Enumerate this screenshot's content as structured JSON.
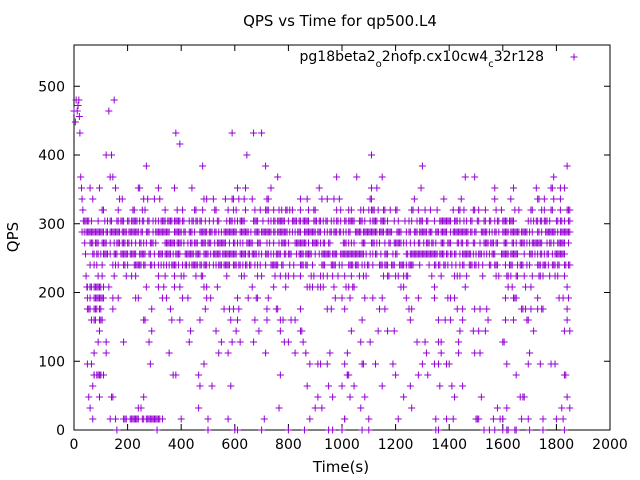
{
  "chart_data": {
    "type": "scatter",
    "title": "QPS vs Time for qp500.L4",
    "xlabel": "Time(s)",
    "ylabel": "QPS",
    "xlim": [
      0,
      2000
    ],
    "ylim": [
      0,
      560
    ],
    "xticks": [
      0,
      200,
      400,
      600,
      800,
      1000,
      1200,
      1400,
      1600,
      1800,
      2000
    ],
    "yticks": [
      0,
      100,
      200,
      300,
      400,
      500
    ],
    "grid": false,
    "legend_position": "top-right",
    "series": [
      {
        "name": "pg18beta2_o2nofp.cx10cw4_c32r128",
        "name_parts": [
          {
            "text": "pg18beta2",
            "sub": false
          },
          {
            "text": "o",
            "sub": true
          },
          {
            "text": "2nofp.cx10cw4",
            "sub": false
          },
          {
            "text": "c",
            "sub": true
          },
          {
            "text": "32r128",
            "sub": false
          }
        ],
        "color": "#9400d3",
        "marker": "plus",
        "bands": [
          {
            "y": 304,
            "x_start": 60,
            "x_end": 1850,
            "step": 5,
            "density": 0.55
          },
          {
            "y": 288,
            "x_start": 60,
            "x_end": 1850,
            "step": 5,
            "density": 0.75
          },
          {
            "y": 272,
            "x_start": 60,
            "x_end": 1850,
            "step": 5,
            "density": 0.55
          },
          {
            "y": 256,
            "x_start": 60,
            "x_end": 1850,
            "step": 5,
            "density": 0.7
          },
          {
            "y": 240,
            "x_start": 60,
            "x_end": 1850,
            "step": 5,
            "density": 0.45
          },
          {
            "y": 320,
            "x_start": 60,
            "x_end": 1850,
            "step": 5,
            "density": 0.22
          },
          {
            "y": 336,
            "x_start": 60,
            "x_end": 1850,
            "step": 5,
            "density": 0.1
          },
          {
            "y": 224,
            "x_start": 60,
            "x_end": 1850,
            "step": 5,
            "density": 0.22
          },
          {
            "y": 208,
            "x_start": 60,
            "x_end": 1850,
            "step": 5,
            "density": 0.1
          },
          {
            "y": 192,
            "x_start": 60,
            "x_end": 1850,
            "step": 5,
            "density": 0.1
          },
          {
            "y": 176,
            "x_start": 60,
            "x_end": 1850,
            "step": 5,
            "density": 0.08
          },
          {
            "y": 160,
            "x_start": 60,
            "x_end": 1850,
            "step": 5,
            "density": 0.06
          },
          {
            "y": 352,
            "x_start": 60,
            "x_end": 1850,
            "step": 5,
            "density": 0.04
          },
          {
            "y": 144,
            "x_start": 60,
            "x_end": 1850,
            "step": 5,
            "density": 0.05
          },
          {
            "y": 128,
            "x_start": 60,
            "x_end": 1850,
            "step": 5,
            "density": 0.04
          },
          {
            "y": 112,
            "x_start": 60,
            "x_end": 1850,
            "step": 5,
            "density": 0.04
          },
          {
            "y": 96,
            "x_start": 60,
            "x_end": 1850,
            "step": 5,
            "density": 0.03
          },
          {
            "y": 80,
            "x_start": 60,
            "x_end": 1850,
            "step": 5,
            "density": 0.03
          },
          {
            "y": 64,
            "x_start": 60,
            "x_end": 1850,
            "step": 5,
            "density": 0.03
          },
          {
            "y": 48,
            "x_start": 60,
            "x_end": 1850,
            "step": 5,
            "density": 0.03
          },
          {
            "y": 32,
            "x_start": 60,
            "x_end": 1850,
            "step": 5,
            "density": 0.03
          },
          {
            "y": 16,
            "x_start": 60,
            "x_end": 1850,
            "step": 5,
            "density": 0.05
          },
          {
            "y": 0,
            "x_start": 60,
            "x_end": 1850,
            "step": 5,
            "density": 0.04
          },
          {
            "y": 192,
            "x_start": 50,
            "x_end": 110,
            "step": 5,
            "density": 0.9
          },
          {
            "y": 176,
            "x_start": 50,
            "x_end": 100,
            "step": 5,
            "density": 0.8
          },
          {
            "y": 208,
            "x_start": 50,
            "x_end": 100,
            "step": 5,
            "density": 0.6
          },
          {
            "y": 160,
            "x_start": 60,
            "x_end": 100,
            "step": 5,
            "density": 0.6
          },
          {
            "y": 80,
            "x_start": 60,
            "x_end": 110,
            "step": 5,
            "density": 0.5
          },
          {
            "y": 16,
            "x_start": 180,
            "x_end": 330,
            "step": 5,
            "density": 0.6
          },
          {
            "y": 304,
            "x_start": 30,
            "x_end": 60,
            "step": 5,
            "density": 0.6
          },
          {
            "y": 288,
            "x_start": 30,
            "x_end": 60,
            "step": 5,
            "density": 0.5
          }
        ],
        "points": [
          [
            0,
            464
          ],
          [
            5,
            448
          ],
          [
            8,
            480
          ],
          [
            12,
            464
          ],
          [
            15,
            472
          ],
          [
            18,
            480
          ],
          [
            20,
            456
          ],
          [
            22,
            432
          ],
          [
            25,
            368
          ],
          [
            28,
            352
          ],
          [
            30,
            336
          ],
          [
            33,
            320
          ],
          [
            35,
            304
          ],
          [
            38,
            288
          ],
          [
            40,
            272
          ],
          [
            43,
            256
          ],
          [
            45,
            224
          ],
          [
            48,
            208
          ],
          [
            50,
            96
          ],
          [
            55,
            48
          ],
          [
            60,
            32
          ],
          [
            65,
            96
          ],
          [
            70,
            16
          ],
          [
            75,
            112
          ],
          [
            100,
            80
          ],
          [
            130,
            464
          ],
          [
            150,
            480
          ],
          [
            120,
            400
          ],
          [
            140,
            400
          ],
          [
            135,
            368
          ],
          [
            145,
            368
          ],
          [
            155,
            352
          ],
          [
            170,
            336
          ],
          [
            270,
            384
          ],
          [
            380,
            432
          ],
          [
            395,
            416
          ],
          [
            480,
            384
          ],
          [
            590,
            432
          ],
          [
            670,
            432
          ],
          [
            700,
            432
          ],
          [
            645,
            400
          ],
          [
            715,
            384
          ],
          [
            760,
            368
          ],
          [
            980,
            368
          ],
          [
            1055,
            368
          ],
          [
            1110,
            400
          ],
          [
            1150,
            368
          ],
          [
            1300,
            384
          ],
          [
            1460,
            368
          ],
          [
            1495,
            368
          ],
          [
            1570,
            352
          ],
          [
            1840,
            384
          ],
          [
            1790,
            368
          ],
          [
            1815,
            352
          ],
          [
            1730,
            336
          ],
          [
            500,
            0
          ],
          [
            600,
            0
          ],
          [
            610,
            0
          ],
          [
            700,
            0
          ],
          [
            800,
            0
          ],
          [
            1000,
            0
          ],
          [
            1100,
            0
          ],
          [
            1350,
            0
          ],
          [
            1360,
            0
          ],
          [
            1600,
            0
          ],
          [
            1650,
            0
          ],
          [
            1700,
            0
          ],
          [
            1750,
            0
          ],
          [
            300,
            16
          ],
          [
            400,
            16
          ],
          [
            500,
            16
          ],
          [
            1010,
            16
          ],
          [
            1100,
            16
          ],
          [
            1500,
            16
          ],
          [
            1600,
            16
          ],
          [
            1800,
            16
          ],
          [
            1820,
            32
          ],
          [
            1840,
            48
          ],
          [
            900,
            32
          ],
          [
            910,
            48
          ],
          [
            950,
            64
          ],
          [
            1020,
            80
          ],
          [
            1080,
            96
          ],
          [
            1200,
            80
          ],
          [
            1300,
            96
          ],
          [
            1450,
            64
          ],
          [
            1520,
            48
          ],
          [
            1650,
            80
          ],
          [
            1700,
            112
          ],
          [
            1780,
            96
          ],
          [
            1830,
            80
          ]
        ]
      }
    ]
  }
}
